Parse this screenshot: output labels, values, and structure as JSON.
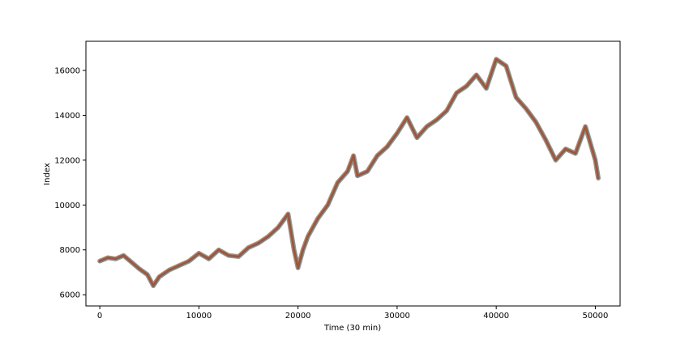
{
  "chart_data": {
    "type": "line",
    "title": "",
    "xlabel": "Time (30 min)",
    "ylabel": "Index",
    "xlim": [
      -1400,
      52500
    ],
    "ylim": [
      5500,
      17300
    ],
    "grid": false,
    "legend": "none",
    "x_ticks": [
      0,
      10000,
      20000,
      30000,
      40000,
      50000
    ],
    "y_ticks": [
      6000,
      8000,
      10000,
      12000,
      14000,
      16000
    ],
    "x_tick_labels": [
      "0",
      "10000",
      "20000",
      "30000",
      "40000",
      "50000"
    ],
    "y_tick_labels": [
      "6000",
      "8000",
      "10000",
      "12000",
      "14000",
      "16000"
    ],
    "colors": {
      "primary": "#b5473a",
      "secondary": "#5f8a3a",
      "shadow": "#6f6f6f"
    },
    "series": [
      {
        "x": [
          0,
          800,
          1600,
          2400,
          3200,
          4000,
          4800,
          5400,
          6000,
          7000,
          8000,
          9000,
          10000,
          11000,
          12000,
          13000,
          14000,
          15000,
          16000,
          17000,
          18000,
          19000,
          19600,
          20000,
          20500,
          21000,
          22000,
          23000,
          24000,
          25000,
          25600,
          26000,
          27000,
          28000,
          29000,
          30000,
          31000,
          32000,
          33000,
          34000,
          35000,
          36000,
          37000,
          38000,
          39000,
          40000,
          41000,
          42000,
          43000,
          44000,
          45000,
          46000,
          47000,
          48000,
          49000,
          50000,
          50300
        ],
        "values": [
          7500,
          7650,
          7600,
          7750,
          7450,
          7150,
          6900,
          6400,
          6800,
          7100,
          7300,
          7500,
          7850,
          7600,
          8000,
          7750,
          7700,
          8100,
          8300,
          8600,
          9000,
          9600,
          8000,
          7200,
          8000,
          8600,
          9400,
          10000,
          11000,
          11500,
          12200,
          11300,
          11500,
          12200,
          12600,
          13200,
          13900,
          13000,
          13500,
          13800,
          14200,
          15000,
          15300,
          15800,
          15200,
          16500,
          16200,
          14800,
          14300,
          13700,
          12900,
          12000,
          12500,
          12300,
          13500,
          12000,
          11200
        ]
      }
    ]
  }
}
